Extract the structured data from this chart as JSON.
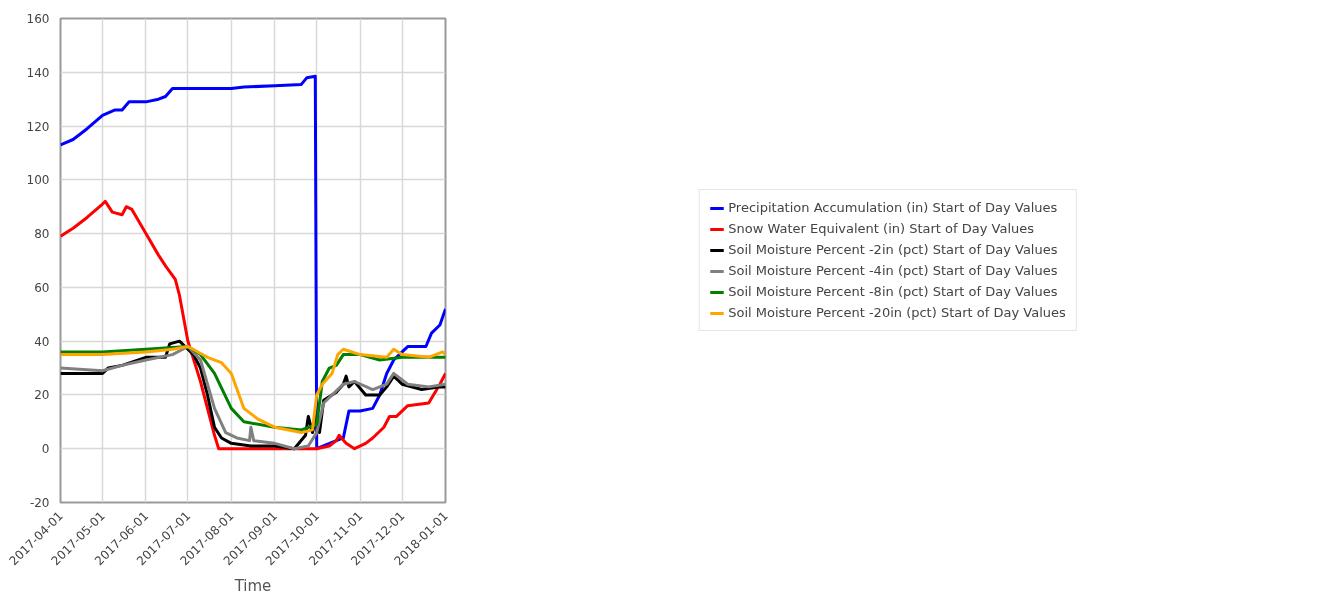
{
  "chart_data": {
    "type": "line",
    "xlabel": "Time",
    "xlim": [
      "2017-04-01",
      "2018-01-01"
    ],
    "xticks": [
      "2017-04-01",
      "2017-05-01",
      "2017-06-01",
      "2017-07-01",
      "2017-08-01",
      "2017-09-01",
      "2017-10-01",
      "2017-11-01",
      "2017-12-01",
      "2018-01-01"
    ],
    "ylim": [
      -20,
      160
    ],
    "yticks": [
      -20,
      0,
      20,
      40,
      60,
      80,
      100,
      120,
      140,
      160
    ],
    "grid": true,
    "legend": "right",
    "marker": "none",
    "line_style": "solid",
    "series": [
      {
        "name": "Precipitation Accumulation (in) Start of Day Values",
        "color": "#0000ff",
        "x": [
          "2017-04-01",
          "2017-04-10",
          "2017-04-20",
          "2017-05-01",
          "2017-05-10",
          "2017-05-15",
          "2017-05-20",
          "2017-06-01",
          "2017-06-10",
          "2017-06-15",
          "2017-06-20",
          "2017-07-01",
          "2017-08-01",
          "2017-08-10",
          "2017-09-01",
          "2017-09-20",
          "2017-09-24",
          "2017-09-30",
          "2017-10-01",
          "2017-10-15",
          "2017-10-20",
          "2017-10-24",
          "2017-11-01",
          "2017-11-10",
          "2017-11-15",
          "2017-11-20",
          "2017-11-25",
          "2017-12-01",
          "2017-12-05",
          "2017-12-18",
          "2017-12-22",
          "2017-12-28",
          "2018-01-01"
        ],
        "values": [
          113,
          115,
          119,
          124,
          126,
          126,
          129,
          129,
          130,
          131,
          134,
          134,
          134,
          134.5,
          135,
          135.5,
          138,
          138.5,
          0,
          3,
          4,
          14,
          14,
          15,
          20,
          28,
          33,
          36,
          38,
          38,
          43,
          46,
          52
        ]
      },
      {
        "name": "Snow Water Equivalent (in) Start of Day Values",
        "color": "#ff0000",
        "x": [
          "2017-04-01",
          "2017-04-10",
          "2017-04-20",
          "2017-05-01",
          "2017-05-03",
          "2017-05-08",
          "2017-05-15",
          "2017-05-18",
          "2017-05-22",
          "2017-06-01",
          "2017-06-10",
          "2017-06-15",
          "2017-06-22",
          "2017-06-25",
          "2017-07-01",
          "2017-07-10",
          "2017-07-20",
          "2017-07-23",
          "2017-08-01",
          "2017-09-01",
          "2017-10-01",
          "2017-10-10",
          "2017-10-15",
          "2017-10-17",
          "2017-10-22",
          "2017-10-28",
          "2017-11-05",
          "2017-11-10",
          "2017-11-18",
          "2017-11-22",
          "2017-11-27",
          "2017-12-05",
          "2017-12-20",
          "2017-12-28",
          "2018-01-01"
        ],
        "values": [
          79,
          82,
          86,
          91,
          92,
          88,
          87,
          90,
          89,
          80,
          72,
          68,
          63,
          57,
          40,
          25,
          5,
          0,
          0,
          0,
          0,
          1,
          3,
          5,
          2,
          0,
          2,
          4,
          8,
          12,
          12,
          16,
          17,
          24,
          28
        ]
      },
      {
        "name": "Soil Moisture Percent -2in (pct) Start of Day Values",
        "color": "#000000",
        "x": [
          "2017-04-01",
          "2017-04-15",
          "2017-05-01",
          "2017-05-05",
          "2017-05-15",
          "2017-06-01",
          "2017-06-15",
          "2017-06-18",
          "2017-06-25",
          "2017-07-01",
          "2017-07-05",
          "2017-07-10",
          "2017-07-15",
          "2017-07-20",
          "2017-07-25",
          "2017-08-01",
          "2017-08-15",
          "2017-09-01",
          "2017-09-15",
          "2017-09-23",
          "2017-09-25",
          "2017-09-28",
          "2017-10-01",
          "2017-10-03",
          "2017-10-06",
          "2017-10-15",
          "2017-10-20",
          "2017-10-22",
          "2017-10-24",
          "2017-10-28",
          "2017-11-05",
          "2017-11-15",
          "2017-11-20",
          "2017-11-25",
          "2017-12-01",
          "2017-12-15",
          "2017-12-28",
          "2018-01-01"
        ],
        "values": [
          28,
          28,
          28,
          30,
          31,
          34,
          34,
          39,
          40,
          37,
          35,
          30,
          20,
          8,
          4,
          2,
          1,
          1,
          0,
          5,
          12,
          6,
          12,
          6,
          18,
          21,
          24,
          27,
          23,
          25,
          20,
          20,
          23,
          27,
          24,
          22,
          23,
          23
        ]
      },
      {
        "name": "Soil Moisture Percent -4in (pct) Start of Day Values",
        "color": "#808080",
        "x": [
          "2017-04-01",
          "2017-05-01",
          "2017-05-15",
          "2017-06-01",
          "2017-06-20",
          "2017-07-01",
          "2017-07-10",
          "2017-07-20",
          "2017-07-28",
          "2017-08-05",
          "2017-08-14",
          "2017-08-15",
          "2017-08-17",
          "2017-09-01",
          "2017-09-15",
          "2017-09-25",
          "2017-10-01",
          "2017-10-06",
          "2017-10-20",
          "2017-10-28",
          "2017-11-10",
          "2017-11-20",
          "2017-11-25",
          "2017-12-05",
          "2017-12-20",
          "2018-01-01"
        ],
        "values": [
          30,
          29,
          31,
          33,
          35,
          38,
          33,
          15,
          6,
          4,
          3,
          8,
          3,
          2,
          0,
          1,
          6,
          17,
          24,
          25,
          22,
          24,
          28,
          24,
          23,
          24
        ]
      },
      {
        "name": "Soil Moisture Percent -8in (pct) Start of Day Values",
        "color": "#008000",
        "x": [
          "2017-04-01",
          "2017-05-01",
          "2017-06-01",
          "2017-07-01",
          "2017-07-10",
          "2017-07-20",
          "2017-08-01",
          "2017-08-10",
          "2017-09-01",
          "2017-09-20",
          "2017-10-01",
          "2017-10-05",
          "2017-10-10",
          "2017-10-15",
          "2017-10-20",
          "2017-11-01",
          "2017-11-15",
          "2017-12-01",
          "2017-12-15",
          "2018-01-01"
        ],
        "values": [
          36,
          36,
          37,
          38,
          35,
          28,
          15,
          10,
          8,
          7,
          9,
          25,
          30,
          31,
          35,
          35,
          33,
          34,
          34,
          34
        ]
      },
      {
        "name": "Soil Moisture Percent -20in (pct) Start of Day Values",
        "color": "#ffa500",
        "x": [
          "2017-04-01",
          "2017-05-01",
          "2017-06-01",
          "2017-06-20",
          "2017-07-01",
          "2017-07-15",
          "2017-07-25",
          "2017-08-01",
          "2017-08-10",
          "2017-08-20",
          "2017-09-01",
          "2017-09-20",
          "2017-09-28",
          "2017-10-01",
          "2017-10-05",
          "2017-10-12",
          "2017-10-16",
          "2017-10-20",
          "2017-11-01",
          "2017-11-20",
          "2017-11-25",
          "2017-12-01",
          "2017-12-20",
          "2017-12-30",
          "2018-01-01"
        ],
        "values": [
          35,
          35,
          36,
          37,
          38,
          34,
          32,
          28,
          15,
          11,
          8,
          6,
          7,
          20,
          24,
          28,
          35,
          37,
          35,
          34,
          37,
          35,
          34,
          36,
          35
        ]
      }
    ]
  }
}
